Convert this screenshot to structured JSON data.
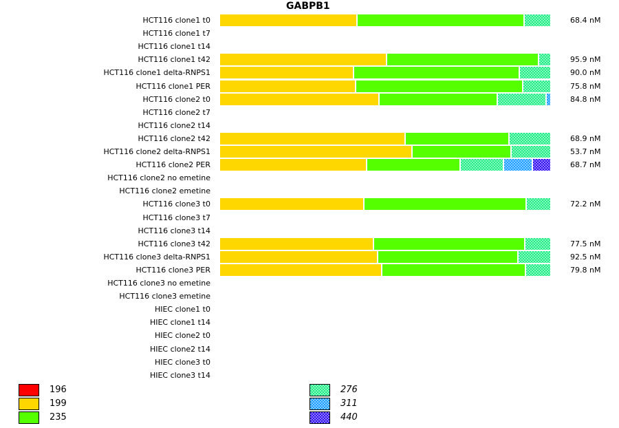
{
  "chart_data": {
    "type": "bar",
    "orientation": "horizontal",
    "stacked": true,
    "normalized": true,
    "title": "GABPB1",
    "categories": [
      "HCT116 clone1 t0",
      "HCT116 clone1 t7",
      "HCT116 clone1 t14",
      "HCT116 clone1 t42",
      "HCT116 clone1 delta-RNPS1",
      "HCT116 clone1 PER",
      "HCT116 clone2 t0",
      "HCT116 clone2 t7",
      "HCT116 clone2 t14",
      "HCT116 clone2 t42",
      "HCT116 clone2 delta-RNPS1",
      "HCT116 clone2 PER",
      "HCT116 clone2 no emetine",
      "HCT116 clone2 emetine",
      "HCT116 clone3 t0",
      "HCT116 clone3 t7",
      "HCT116 clone3 t14",
      "HCT116 clone3 t42",
      "HCT116 clone3 delta-RNPS1",
      "HCT116 clone3 PER",
      "HCT116 clone3 no emetine",
      "HCT116 clone3 emetine",
      "HIEC clone1 t0",
      "HIEC clone1 t14",
      "HIEC clone2 t0",
      "HIEC clone2 t14",
      "HIEC clone3 t0",
      "HIEC clone3 t14"
    ],
    "totals": [
      "68.4 nM",
      "",
      "",
      "95.9 nM",
      "90.0 nM",
      "75.8 nM",
      "84.8 nM",
      "",
      "",
      "68.9 nM",
      "53.7 nM",
      "68.7 nM",
      "",
      "",
      "72.2 nM",
      "",
      "",
      "77.5 nM",
      "92.5 nM",
      "79.8 nM",
      "",
      "",
      "",
      "",
      "",
      "",
      "",
      ""
    ],
    "series": [
      {
        "name": "196",
        "color": "#ff0000",
        "pattern": "solid",
        "values": [
          0,
          0,
          0,
          0,
          0,
          0,
          0,
          0,
          0,
          0,
          0,
          0,
          0,
          0,
          0,
          0,
          0,
          0,
          0,
          0,
          0,
          0,
          0,
          0,
          0,
          0,
          0,
          0
        ]
      },
      {
        "name": "199",
        "color": "#ffd700",
        "pattern": "solid",
        "values": [
          0.415,
          0,
          0,
          0.504,
          0.404,
          0.411,
          0.481,
          0,
          0,
          0.561,
          0.58,
          0.444,
          0,
          0,
          0.436,
          0,
          0,
          0.465,
          0.477,
          0.49,
          0,
          0,
          0,
          0,
          0,
          0,
          0,
          0
        ]
      },
      {
        "name": "235",
        "color": "#55ff00",
        "pattern": "solid",
        "values": [
          0.504,
          0,
          0,
          0.458,
          0.5,
          0.504,
          0.358,
          0,
          0,
          0.313,
          0.3,
          0.283,
          0,
          0,
          0.49,
          0,
          0,
          0.456,
          0.423,
          0.433,
          0,
          0,
          0,
          0,
          0,
          0,
          0,
          0
        ]
      },
      {
        "name": "276",
        "color": "#22ee88",
        "pattern": "checker",
        "values": [
          0.081,
          0,
          0,
          0.038,
          0.096,
          0.085,
          0.146,
          0,
          0,
          0.126,
          0.12,
          0.13,
          0,
          0,
          0.074,
          0,
          0,
          0.079,
          0.1,
          0.077,
          0,
          0,
          0,
          0,
          0,
          0,
          0,
          0
        ]
      },
      {
        "name": "311",
        "color": "#1e9fff",
        "pattern": "checker",
        "values": [
          0,
          0,
          0,
          0,
          0,
          0,
          0.015,
          0,
          0,
          0,
          0,
          0.088,
          0,
          0,
          0,
          0,
          0,
          0,
          0,
          0,
          0,
          0,
          0,
          0,
          0,
          0,
          0,
          0
        ]
      },
      {
        "name": "440",
        "color": "#3311ee",
        "pattern": "checker",
        "values": [
          0,
          0,
          0,
          0,
          0,
          0,
          0,
          0,
          0,
          0,
          0,
          0.055,
          0,
          0,
          0,
          0,
          0,
          0,
          0,
          0,
          0,
          0,
          0,
          0,
          0,
          0,
          0,
          0
        ]
      }
    ],
    "legend": [
      {
        "label": "196",
        "color": "#ff0000",
        "pattern": "solid",
        "italic": false
      },
      {
        "label": "199",
        "color": "#ffd700",
        "pattern": "solid",
        "italic": false
      },
      {
        "label": "235",
        "color": "#55ff00",
        "pattern": "solid",
        "italic": false
      },
      {
        "label": "276",
        "color": "#22ee88",
        "pattern": "checker",
        "italic": true
      },
      {
        "label": "311",
        "color": "#1e9fff",
        "pattern": "checker",
        "italic": true
      },
      {
        "label": "440",
        "color": "#3311ee",
        "pattern": "checker",
        "italic": true
      }
    ],
    "legend_placement": "bottom",
    "grid": false
  }
}
